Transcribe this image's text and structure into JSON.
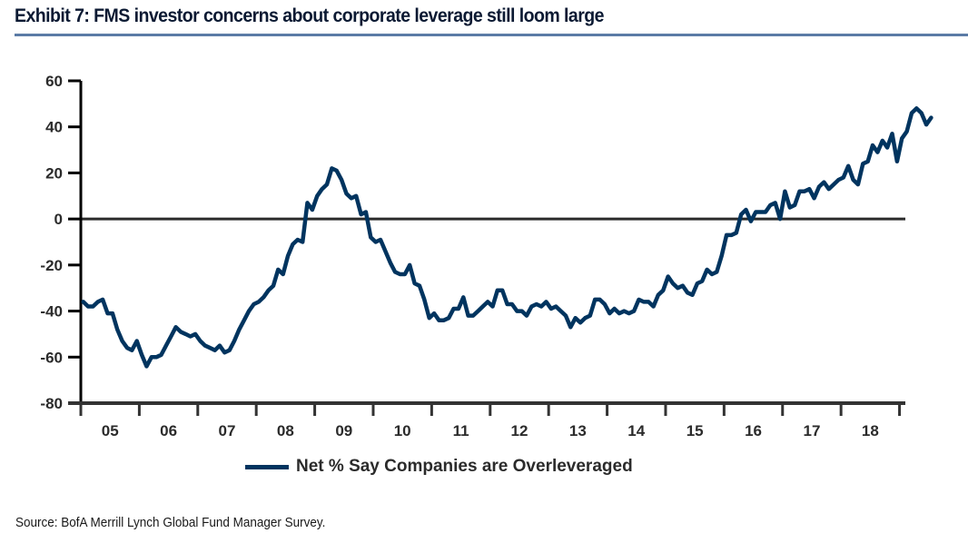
{
  "header": {
    "title": "Exhibit 7: FMS investor concerns about corporate  leverage still loom large"
  },
  "footer": {
    "source": "Source:  BofA Merrill Lynch Global Fund Manager Survey."
  },
  "colors": {
    "series": "#00345f",
    "axis": "#000000",
    "zero_line": "#2b2b2b",
    "title_rule": "#5b7ba6"
  },
  "chart_data": {
    "type": "line",
    "title": "Exhibit 7: FMS investor concerns about corporate leverage still loom large",
    "xlabel": "",
    "ylabel": "",
    "ylim": [
      -80,
      60
    ],
    "yticks": [
      60,
      40,
      20,
      0,
      -20,
      -40,
      -60,
      -80
    ],
    "ytick_labels": [
      "60",
      "40",
      "20",
      "0",
      "-20",
      "-40",
      "-60",
      "-80"
    ],
    "xtick_labels": [
      "05",
      "06",
      "07",
      "08",
      "09",
      "10",
      "11",
      "12",
      "13",
      "14",
      "15",
      "16",
      "17",
      "18"
    ],
    "x_start_year": 2005,
    "x_end_year": 2019.1,
    "frequency": "monthly",
    "grid": false,
    "zero_line": true,
    "legend": {
      "position": "bottom-center",
      "entries": [
        "Net % Say Companies are Overleveraged"
      ]
    },
    "series": [
      {
        "name": "Net % Say Companies are Overleveraged",
        "start": "2005-01",
        "values": [
          -36,
          -38,
          -38,
          -36,
          -35,
          -41,
          -41,
          -48,
          -53,
          -56,
          -57,
          -53,
          -59,
          -64,
          -60,
          -60,
          -59,
          -55,
          -51,
          -47,
          -49,
          -50,
          -51,
          -50,
          -53,
          -55,
          -56,
          -57,
          -55,
          -58,
          -57,
          -53,
          -48,
          -44,
          -40,
          -37,
          -36,
          -34,
          -31,
          -29,
          -22,
          -24,
          -16,
          -11,
          -9,
          -10,
          7,
          4,
          10,
          13,
          15,
          22,
          21,
          17,
          11,
          9,
          10,
          2,
          3,
          -8,
          -10,
          -9,
          -14,
          -19,
          -23,
          -24,
          -24,
          -20,
          -28,
          -29,
          -35,
          -43,
          -41,
          -44,
          -44,
          -43,
          -39,
          -39,
          -34,
          -42,
          -42,
          -40,
          -38,
          -36,
          -38,
          -31,
          -31,
          -37,
          -37,
          -40,
          -40,
          -42,
          -38,
          -37,
          -38,
          -36,
          -39,
          -38,
          -40,
          -42,
          -47,
          -43,
          -45,
          -43,
          -42,
          -35,
          -35,
          -37,
          -41,
          -39,
          -41,
          -40,
          -41,
          -40,
          -35,
          -36,
          -36,
          -38,
          -33,
          -31,
          -25,
          -28,
          -30,
          -29,
          -32,
          -33,
          -28,
          -27,
          -22,
          -24,
          -23,
          -16,
          -7,
          -7,
          -6,
          2,
          4,
          -1,
          3,
          3,
          3,
          6,
          7,
          0,
          12,
          5,
          6,
          12,
          12,
          13,
          9,
          14,
          16,
          13,
          15,
          17,
          18,
          23,
          17,
          15,
          24,
          25,
          32,
          29,
          34,
          31,
          37,
          25,
          35,
          38,
          46,
          48,
          46,
          41,
          44
        ]
      }
    ]
  }
}
